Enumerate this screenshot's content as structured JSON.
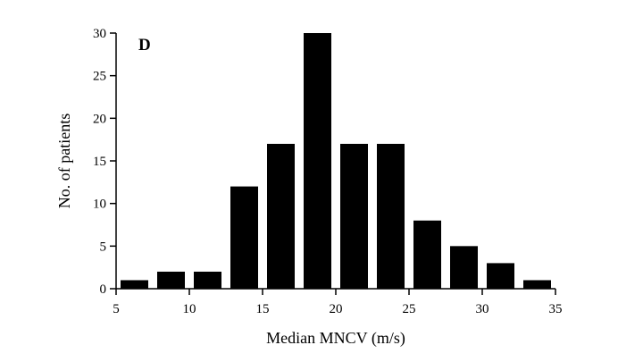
{
  "chart_data": {
    "type": "bar",
    "panel_label": "D",
    "xlabel": "Median MNCV (m/s)",
    "ylabel": "No. of patients",
    "xlim": [
      5,
      35
    ],
    "ylim": [
      0,
      30
    ],
    "x_ticks": [
      5,
      10,
      15,
      20,
      25,
      30,
      35
    ],
    "y_ticks": [
      0,
      5,
      10,
      15,
      20,
      25,
      30
    ],
    "bin_width": 2.5,
    "x": [
      6.25,
      8.75,
      11.25,
      13.75,
      16.25,
      18.75,
      21.25,
      23.75,
      26.25,
      28.75,
      31.25,
      33.75
    ],
    "values": [
      1,
      2,
      2,
      12,
      17,
      30,
      17,
      17,
      8,
      5,
      3,
      1
    ],
    "bar_color": "#000000",
    "grid": false
  }
}
